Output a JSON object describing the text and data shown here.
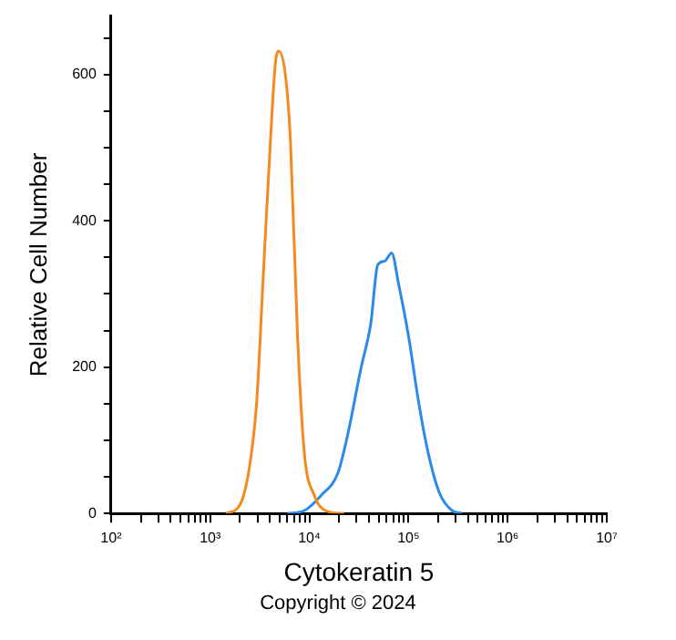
{
  "chart_data": {
    "type": "line",
    "xlabel": "Cytokeratin 5",
    "ylabel": "Relative Cell Number",
    "log": "x",
    "xlim": [
      100,
      10000000
    ],
    "ylim": [
      0,
      680
    ],
    "xticks": [
      {
        "value": 100,
        "label": "10²"
      },
      {
        "value": 200,
        "label": null
      },
      {
        "value": 300,
        "label": null
      },
      {
        "value": 400,
        "label": null
      },
      {
        "value": 500,
        "label": null
      },
      {
        "value": 600,
        "label": null
      },
      {
        "value": 700,
        "label": null
      },
      {
        "value": 800,
        "label": null
      },
      {
        "value": 900,
        "label": null
      },
      {
        "value": 1000,
        "label": "10³"
      },
      {
        "value": 2000,
        "label": null
      },
      {
        "value": 3000,
        "label": null
      },
      {
        "value": 4000,
        "label": null
      },
      {
        "value": 5000,
        "label": null
      },
      {
        "value": 6000,
        "label": null
      },
      {
        "value": 7000,
        "label": null
      },
      {
        "value": 8000,
        "label": null
      },
      {
        "value": 9000,
        "label": null
      },
      {
        "value": 10000,
        "label": "10⁴"
      },
      {
        "value": 20000,
        "label": null
      },
      {
        "value": 30000,
        "label": null
      },
      {
        "value": 40000,
        "label": null
      },
      {
        "value": 50000,
        "label": null
      },
      {
        "value": 60000,
        "label": null
      },
      {
        "value": 70000,
        "label": null
      },
      {
        "value": 80000,
        "label": null
      },
      {
        "value": 90000,
        "label": null
      },
      {
        "value": 100000,
        "label": "10⁵"
      },
      {
        "value": 200000,
        "label": null
      },
      {
        "value": 300000,
        "label": null
      },
      {
        "value": 400000,
        "label": null
      },
      {
        "value": 500000,
        "label": null
      },
      {
        "value": 600000,
        "label": null
      },
      {
        "value": 700000,
        "label": null
      },
      {
        "value": 800000,
        "label": null
      },
      {
        "value": 900000,
        "label": null
      },
      {
        "value": 1000000,
        "label": "10⁶"
      },
      {
        "value": 2000000,
        "label": null
      },
      {
        "value": 3000000,
        "label": null
      },
      {
        "value": 4000000,
        "label": null
      },
      {
        "value": 5000000,
        "label": null
      },
      {
        "value": 6000000,
        "label": null
      },
      {
        "value": 7000000,
        "label": null
      },
      {
        "value": 8000000,
        "label": null
      },
      {
        "value": 9000000,
        "label": null
      },
      {
        "value": 10000000,
        "label": "10⁷"
      }
    ],
    "yticks": [
      0,
      {
        "value": 50,
        "label": null
      },
      {
        "value": 100,
        "label": null
      },
      {
        "value": 150,
        "label": null
      },
      200,
      {
        "value": 250,
        "label": null
      },
      {
        "value": 300,
        "label": null
      },
      {
        "value": 350,
        "label": null
      },
      400,
      {
        "value": 450,
        "label": null
      },
      {
        "value": 500,
        "label": null
      },
      {
        "value": 550,
        "label": null
      },
      600,
      {
        "value": 650,
        "label": null
      }
    ],
    "grid": false,
    "legend": false,
    "marker": "none",
    "line_style": "solid",
    "annotations": [
      "Copyright © 2024"
    ],
    "series": [
      {
        "color": "#f28a1e",
        "x": [
          1450,
          2000,
          2500,
          2950,
          3450,
          4050,
          4550,
          4900,
          5750,
          6450,
          7600,
          8900,
          11200,
          15100,
          22400
        ],
        "values": [
          0,
          12,
          65,
          154,
          332,
          509,
          616,
          632,
          598,
          509,
          243,
          83,
          25,
          3,
          0
        ]
      },
      {
        "color": "#2a8ae6",
        "x": [
          6000,
          8900,
          13200,
          19500,
          24500,
          33100,
          41700,
          49000,
          57500,
          67600,
          79400,
          100000,
          126000,
          158000,
          204000,
          275000,
          347000
        ],
        "values": [
          0,
          4,
          25,
          56,
          109,
          198,
          260,
          340,
          345,
          356,
          314,
          243,
          154,
          83,
          29,
          4,
          0
        ]
      }
    ]
  }
}
